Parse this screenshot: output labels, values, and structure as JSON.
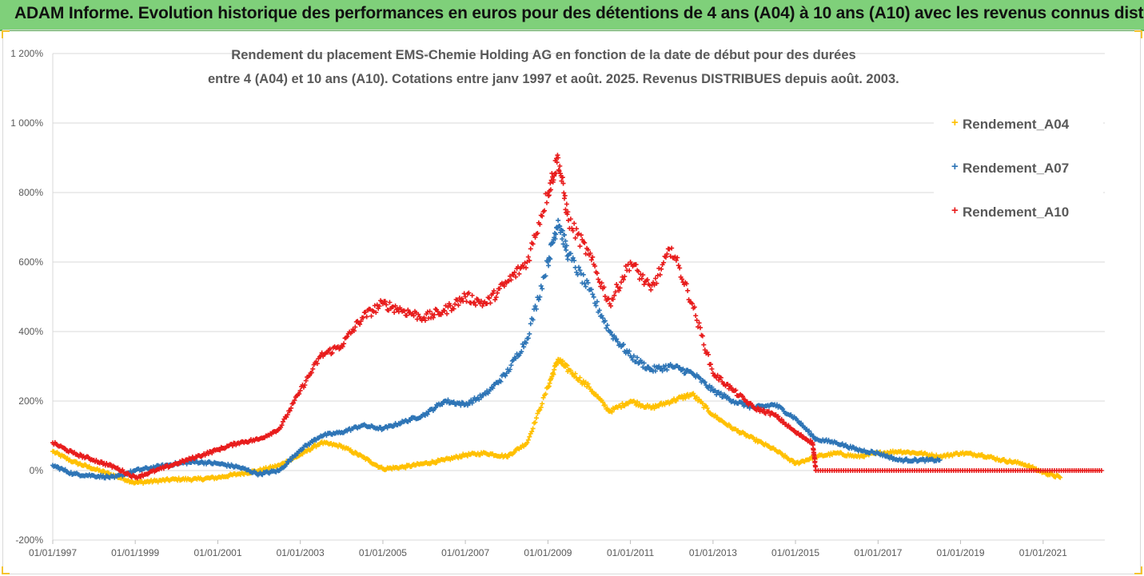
{
  "banner": {
    "title": "ADAM Informe. Evolution historique des performances en euros pour des détentions de 4 ans (A04) à 10 ans (A10) avec les revenus connus distribués"
  },
  "chart_data": {
    "type": "scatter",
    "title_line1": "Rendement du placement EMS-Chemie Holding AG en fonction de la date de début pour des durées",
    "title_line2": "entre 4 (A04) et 10 ans (A10). Cotations entre janv 1997 et août. 2025. Revenus DISTRIBUES depuis août. 2003.",
    "x_tick_labels": [
      "01/01/1997",
      "01/01/1999",
      "01/01/2001",
      "01/01/2003",
      "01/01/2005",
      "01/01/2007",
      "01/01/2009",
      "01/01/2011",
      "01/01/2013",
      "01/01/2015",
      "01/01/2017",
      "01/01/2019",
      "01/01/2021"
    ],
    "y_tick_labels": [
      "1 200%",
      "1 000%",
      "800%",
      "600%",
      "400%",
      "200%",
      "0%",
      "-200%"
    ],
    "y_ticks": [
      1200,
      1000,
      800,
      600,
      400,
      200,
      0,
      -200
    ],
    "xlim": [
      "1997-01-01",
      "2022-07-01"
    ],
    "ylim": [
      -200,
      1200
    ],
    "gridlines": "horizontal",
    "legend_position": "right",
    "marker": "+",
    "series": [
      {
        "name": "Rendement_A04",
        "color": "#ffc000",
        "points": [
          [
            "1997-01-01",
            55
          ],
          [
            "1997-07-01",
            25
          ],
          [
            "1998-01-01",
            5
          ],
          [
            "1998-07-01",
            -15
          ],
          [
            "1999-01-01",
            -35
          ],
          [
            "1999-07-01",
            -30
          ],
          [
            "2000-01-01",
            -25
          ],
          [
            "2000-07-01",
            -25
          ],
          [
            "2001-01-01",
            -20
          ],
          [
            "2001-07-01",
            -10
          ],
          [
            "2002-01-01",
            0
          ],
          [
            "2002-07-01",
            15
          ],
          [
            "2003-01-01",
            45
          ],
          [
            "2003-07-01",
            80
          ],
          [
            "2004-01-01",
            70
          ],
          [
            "2004-07-01",
            40
          ],
          [
            "2005-01-01",
            5
          ],
          [
            "2005-07-01",
            10
          ],
          [
            "2006-01-01",
            20
          ],
          [
            "2006-07-01",
            30
          ],
          [
            "2007-01-01",
            45
          ],
          [
            "2007-07-01",
            50
          ],
          [
            "2008-01-01",
            40
          ],
          [
            "2008-07-01",
            80
          ],
          [
            "2009-01-01",
            240
          ],
          [
            "2009-04-01",
            320
          ],
          [
            "2009-07-01",
            290
          ],
          [
            "2010-01-01",
            240
          ],
          [
            "2010-07-01",
            170
          ],
          [
            "2011-01-01",
            200
          ],
          [
            "2011-07-01",
            180
          ],
          [
            "2012-01-01",
            200
          ],
          [
            "2012-07-01",
            220
          ],
          [
            "2013-01-01",
            160
          ],
          [
            "2013-07-01",
            120
          ],
          [
            "2014-01-01",
            90
          ],
          [
            "2014-07-01",
            60
          ],
          [
            "2015-01-01",
            20
          ],
          [
            "2015-07-01",
            40
          ],
          [
            "2016-01-01",
            50
          ],
          [
            "2016-07-01",
            40
          ],
          [
            "2017-01-01",
            50
          ],
          [
            "2017-07-01",
            55
          ],
          [
            "2018-01-01",
            50
          ],
          [
            "2018-07-01",
            40
          ],
          [
            "2019-01-01",
            50
          ],
          [
            "2019-07-01",
            45
          ],
          [
            "2020-01-01",
            30
          ],
          [
            "2020-07-01",
            20
          ],
          [
            "2021-01-01",
            -5
          ],
          [
            "2021-06-01",
            -20
          ]
        ]
      },
      {
        "name": "Rendement_A07",
        "color": "#2e75b6",
        "points": [
          [
            "1997-01-01",
            15
          ],
          [
            "1997-07-01",
            -10
          ],
          [
            "1998-01-01",
            -15
          ],
          [
            "1998-07-01",
            -20
          ],
          [
            "1999-01-01",
            0
          ],
          [
            "1999-07-01",
            10
          ],
          [
            "2000-01-01",
            20
          ],
          [
            "2000-07-01",
            25
          ],
          [
            "2001-01-01",
            20
          ],
          [
            "2001-07-01",
            10
          ],
          [
            "2002-01-01",
            -10
          ],
          [
            "2002-07-01",
            0
          ],
          [
            "2003-01-01",
            60
          ],
          [
            "2003-07-01",
            100
          ],
          [
            "2004-01-01",
            110
          ],
          [
            "2004-07-01",
            130
          ],
          [
            "2005-01-01",
            120
          ],
          [
            "2005-07-01",
            140
          ],
          [
            "2006-01-01",
            160
          ],
          [
            "2006-07-01",
            200
          ],
          [
            "2007-01-01",
            190
          ],
          [
            "2007-07-01",
            220
          ],
          [
            "2008-01-01",
            280
          ],
          [
            "2008-07-01",
            380
          ],
          [
            "2009-01-01",
            600
          ],
          [
            "2009-04-01",
            720
          ],
          [
            "2009-07-01",
            620
          ],
          [
            "2010-01-01",
            520
          ],
          [
            "2010-07-01",
            400
          ],
          [
            "2011-01-01",
            330
          ],
          [
            "2011-07-01",
            290
          ],
          [
            "2012-01-01",
            300
          ],
          [
            "2012-07-01",
            280
          ],
          [
            "2013-01-01",
            230
          ],
          [
            "2013-07-01",
            200
          ],
          [
            "2014-01-01",
            180
          ],
          [
            "2014-07-01",
            190
          ],
          [
            "2015-01-01",
            150
          ],
          [
            "2015-07-01",
            90
          ],
          [
            "2016-01-01",
            80
          ],
          [
            "2016-07-01",
            60
          ],
          [
            "2017-01-01",
            50
          ],
          [
            "2017-07-01",
            30
          ],
          [
            "2018-01-01",
            30
          ],
          [
            "2018-07-01",
            30
          ]
        ]
      },
      {
        "name": "Rendement_A10",
        "color": "#e81c1c",
        "points": [
          [
            "1997-01-01",
            80
          ],
          [
            "1997-07-01",
            50
          ],
          [
            "1998-01-01",
            30
          ],
          [
            "1998-07-01",
            10
          ],
          [
            "1999-01-01",
            -20
          ],
          [
            "1999-07-01",
            0
          ],
          [
            "2000-01-01",
            20
          ],
          [
            "2000-07-01",
            40
          ],
          [
            "2001-01-01",
            60
          ],
          [
            "2001-07-01",
            80
          ],
          [
            "2002-01-01",
            90
          ],
          [
            "2002-07-01",
            120
          ],
          [
            "2003-01-01",
            230
          ],
          [
            "2003-07-01",
            330
          ],
          [
            "2004-01-01",
            360
          ],
          [
            "2004-07-01",
            440
          ],
          [
            "2005-01-01",
            480
          ],
          [
            "2005-07-01",
            460
          ],
          [
            "2006-01-01",
            440
          ],
          [
            "2006-07-01",
            460
          ],
          [
            "2007-01-01",
            500
          ],
          [
            "2007-07-01",
            480
          ],
          [
            "2008-01-01",
            540
          ],
          [
            "2008-07-01",
            600
          ],
          [
            "2009-01-01",
            800
          ],
          [
            "2009-04-01",
            900
          ],
          [
            "2009-07-01",
            720
          ],
          [
            "2010-01-01",
            620
          ],
          [
            "2010-07-01",
            480
          ],
          [
            "2011-01-01",
            600
          ],
          [
            "2011-07-01",
            520
          ],
          [
            "2012-01-01",
            640
          ],
          [
            "2012-07-01",
            480
          ],
          [
            "2013-01-01",
            280
          ],
          [
            "2013-07-01",
            230
          ],
          [
            "2014-01-01",
            180
          ],
          [
            "2014-07-01",
            160
          ],
          [
            "2015-01-01",
            110
          ],
          [
            "2015-06-01",
            80
          ],
          [
            "2015-07-01",
            0
          ],
          [
            "2016-07-01",
            0
          ],
          [
            "2017-07-01",
            0
          ],
          [
            "2018-07-01",
            0
          ],
          [
            "2019-07-01",
            0
          ],
          [
            "2020-07-01",
            0
          ],
          [
            "2021-07-01",
            0
          ],
          [
            "2022-06-01",
            0
          ]
        ]
      }
    ]
  }
}
